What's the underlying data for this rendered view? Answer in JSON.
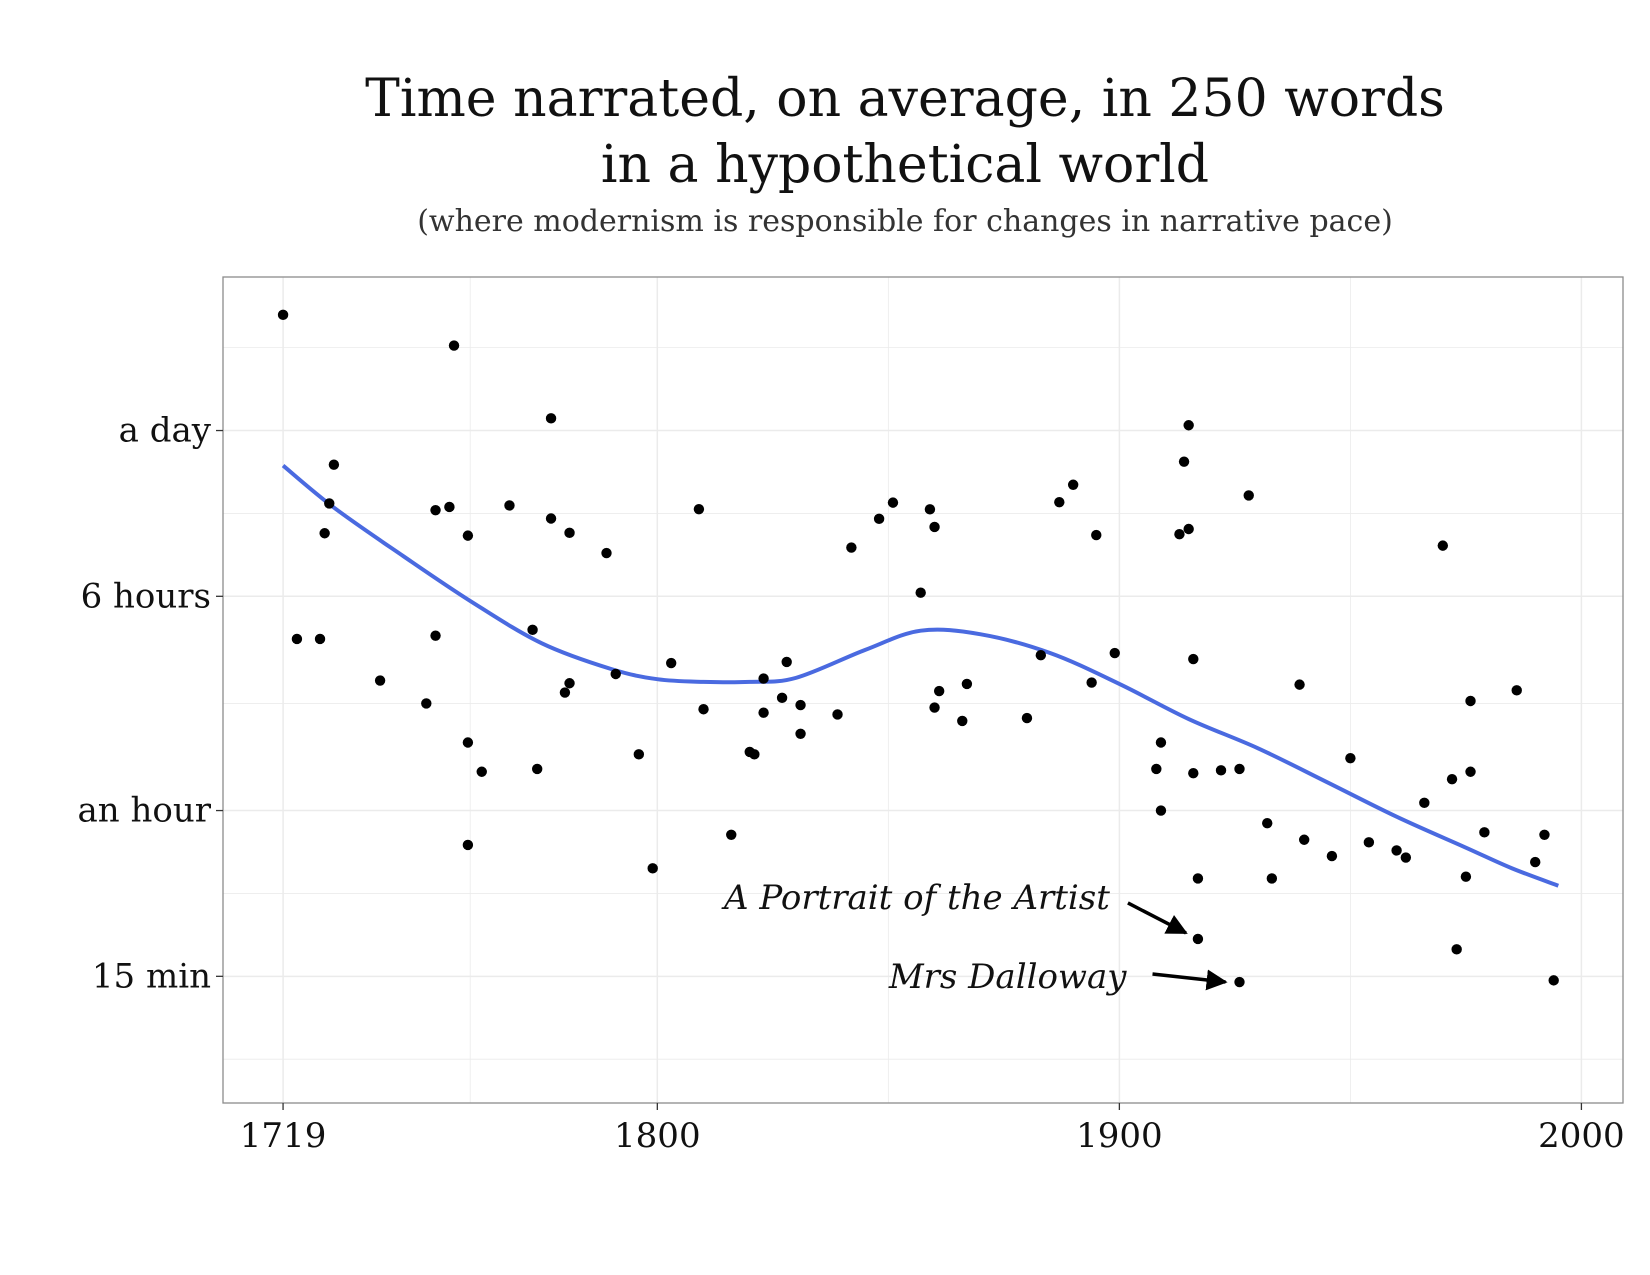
{
  "chart_data": {
    "type": "scatter",
    "title_lines": [
      "Time narrated, on average, in 250 words",
      "in a hypothetical world"
    ],
    "subtitle": "(where modernism is responsible for changes in narrative pace)",
    "xlabel": "",
    "ylabel": "",
    "x_scale": "linear",
    "y_scale": "log",
    "y_unit": "minutes",
    "xlim": [
      1706,
      2009
    ],
    "ylim": [
      5.2,
      5200
    ],
    "grid": true,
    "legend": "none",
    "x_ticks": [
      {
        "value": 1719,
        "label": "1719"
      },
      {
        "value": 1800,
        "label": "1800"
      },
      {
        "value": 1900,
        "label": "1900"
      },
      {
        "value": 2000,
        "label": "2000"
      }
    ],
    "y_ticks": [
      {
        "value": 15,
        "label": "15 min"
      },
      {
        "value": 60,
        "label": "an hour"
      },
      {
        "value": 360,
        "label": "6 hours"
      },
      {
        "value": 1440,
        "label": "a day"
      }
    ],
    "series": [
      {
        "points": [
          [
            1719,
            3790
          ],
          [
            1722,
            252
          ],
          [
            1727,
            252
          ],
          [
            1728,
            610
          ],
          [
            1729,
            783
          ],
          [
            1730,
            1082
          ],
          [
            1740,
            178
          ],
          [
            1750,
            147
          ],
          [
            1752,
            259
          ],
          [
            1752,
            740
          ],
          [
            1755,
            760
          ],
          [
            1756,
            2930
          ],
          [
            1759,
            598
          ],
          [
            1759,
            106
          ],
          [
            1759,
            45
          ],
          [
            1762,
            83
          ],
          [
            1768,
            770
          ],
          [
            1773,
            272
          ],
          [
            1774,
            85
          ],
          [
            1777,
            690
          ],
          [
            1777,
            1595
          ],
          [
            1780,
            161
          ],
          [
            1781,
            174
          ],
          [
            1781,
            612
          ],
          [
            1789,
            517
          ],
          [
            1791,
            188
          ],
          [
            1796,
            96
          ],
          [
            1799,
            37
          ],
          [
            1803,
            206
          ],
          [
            1809,
            746
          ],
          [
            1810,
            140
          ],
          [
            1816,
            49
          ],
          [
            1820,
            98
          ],
          [
            1821,
            96
          ],
          [
            1823,
            181
          ],
          [
            1823,
            136
          ],
          [
            1827,
            154
          ],
          [
            1828,
            208
          ],
          [
            1831,
            145
          ],
          [
            1831,
            114
          ],
          [
            1839,
            134
          ],
          [
            1842,
            541
          ],
          [
            1848,
            688
          ],
          [
            1851,
            788
          ],
          [
            1857,
            371
          ],
          [
            1859,
            745
          ],
          [
            1860,
            643
          ],
          [
            1860,
            142
          ],
          [
            1861,
            163
          ],
          [
            1866,
            127
          ],
          [
            1867,
            173
          ],
          [
            1880,
            130
          ],
          [
            1883,
            220
          ],
          [
            1887,
            791
          ],
          [
            1890,
            915
          ],
          [
            1894,
            175
          ],
          [
            1895,
            601
          ],
          [
            1899,
            224
          ],
          [
            1908,
            85
          ],
          [
            1909,
            106
          ],
          [
            1909,
            60
          ],
          [
            1915,
            632
          ],
          [
            1915,
            1505
          ],
          [
            1916,
            213
          ],
          [
            1916,
            82
          ],
          [
            1917,
            20.5
          ],
          [
            1917,
            34
          ],
          [
            1913,
            605
          ],
          [
            1914,
            1110
          ],
          [
            1922,
            84
          ],
          [
            1926,
            85
          ],
          [
            1926,
            14.3
          ],
          [
            1928,
            837
          ],
          [
            1932,
            54
          ],
          [
            1933,
            34
          ],
          [
            1939,
            172
          ],
          [
            1940,
            47
          ],
          [
            1946,
            41
          ],
          [
            1950,
            93
          ],
          [
            1954,
            46
          ],
          [
            1960,
            43
          ],
          [
            1962,
            40.5
          ],
          [
            1966,
            64
          ],
          [
            1970,
            550
          ],
          [
            1972,
            78
          ],
          [
            1973,
            18.8
          ],
          [
            1975,
            34.5
          ],
          [
            1976,
            83
          ],
          [
            1976,
            150
          ],
          [
            1979,
            50
          ],
          [
            1986,
            164
          ],
          [
            1990,
            39
          ],
          [
            1992,
            49
          ],
          [
            1994,
            14.5
          ]
        ]
      }
    ],
    "trend": {
      "method": "smoothed curve",
      "color": "#4a6ae0",
      "points": [
        [
          1719,
          1074
        ],
        [
          1730,
          756
        ],
        [
          1745,
          504
        ],
        [
          1760,
          342
        ],
        [
          1775,
          243
        ],
        [
          1790,
          196
        ],
        [
          1800,
          180
        ],
        [
          1810,
          176
        ],
        [
          1820,
          176
        ],
        [
          1830,
          182
        ],
        [
          1845,
          230
        ],
        [
          1857,
          270
        ],
        [
          1870,
          262
        ],
        [
          1885,
          224
        ],
        [
          1900,
          173
        ],
        [
          1915,
          129
        ],
        [
          1930,
          101
        ],
        [
          1945,
          76
        ],
        [
          1960,
          57
        ],
        [
          1975,
          44
        ],
        [
          1985,
          37
        ],
        [
          1995,
          32
        ]
      ]
    },
    "annotations": [
      {
        "text": "A Portrait of the Artist",
        "x": 1917,
        "y": 20.5
      },
      {
        "text": "Mrs Dalloway",
        "x": 1926,
        "y": 14.3
      }
    ],
    "colors": {
      "points": "#000000",
      "panel_border": "#8c8c8c",
      "grid": "#ebebeb",
      "text": "#111111"
    }
  }
}
